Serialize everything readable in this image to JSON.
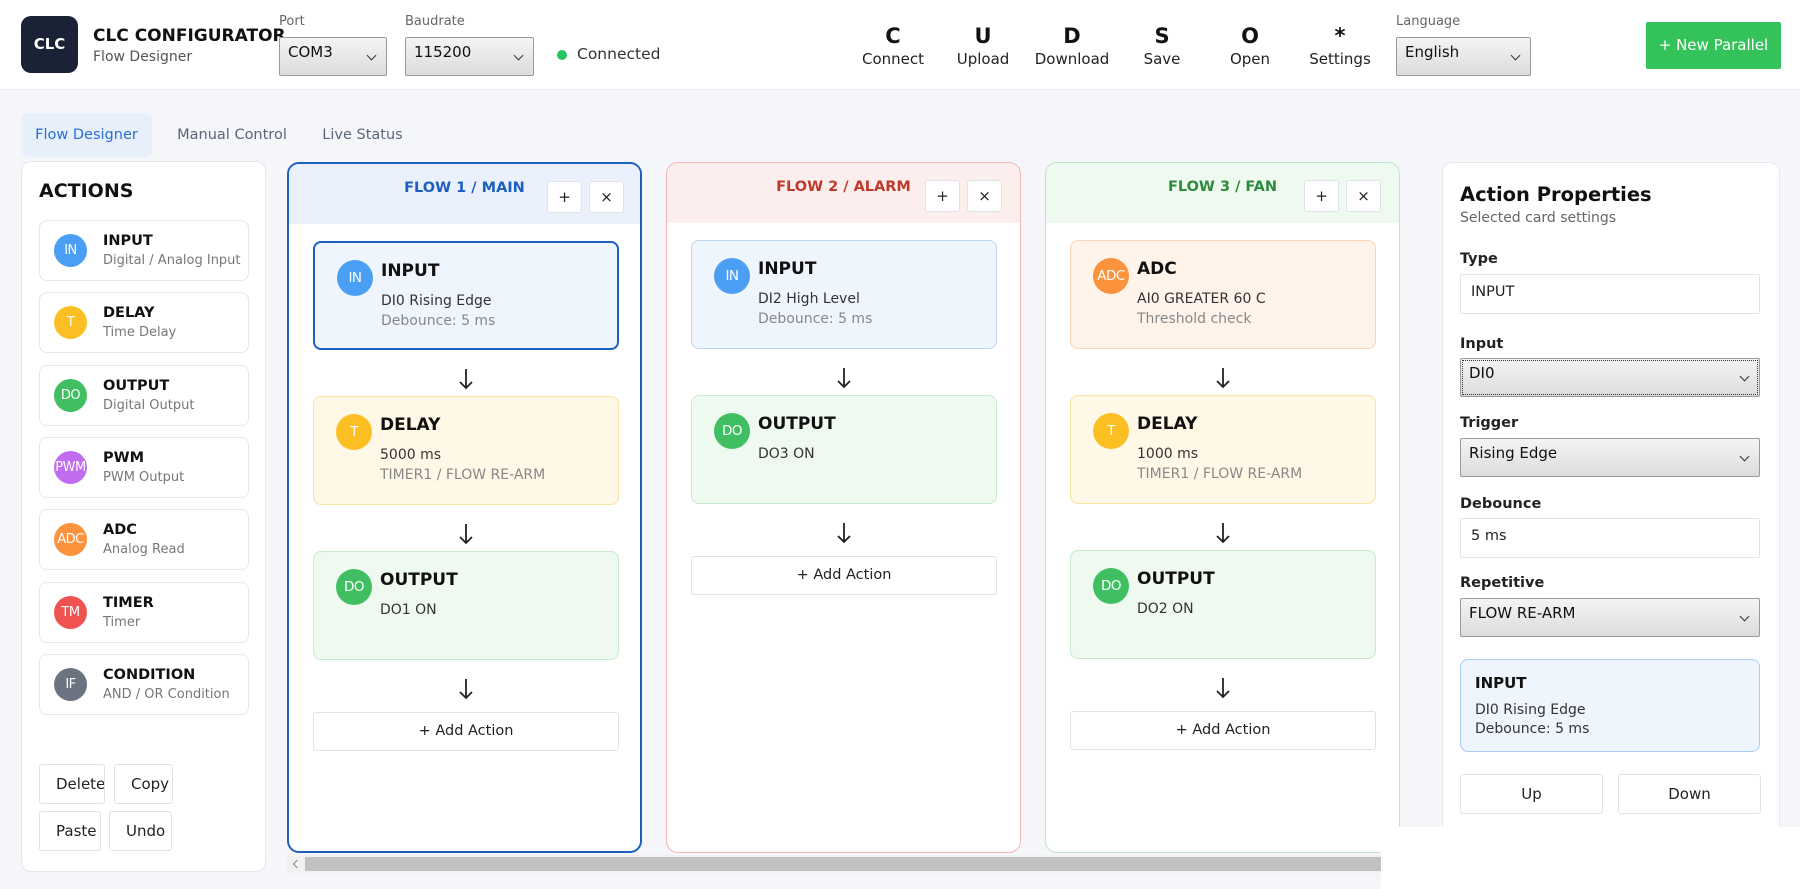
{
  "header": {
    "logo": "CLC",
    "title": "CLC CONFIGURATOR",
    "subtitle": "Flow Designer",
    "port_label": "Port",
    "port": "COM3",
    "baud_label": "Baudrate",
    "baud": "115200",
    "status": "Connected",
    "tools": [
      {
        "icon": "C",
        "label": "Connect"
      },
      {
        "icon": "U",
        "label": "Upload"
      },
      {
        "icon": "D",
        "label": "Download"
      },
      {
        "icon": "S",
        "label": "Save"
      },
      {
        "icon": "O",
        "label": "Open"
      },
      {
        "icon": "*",
        "label": "Settings"
      }
    ],
    "language_label": "Language",
    "language": "English",
    "new_button": "+ New Parallel"
  },
  "tabs": [
    "Flow Designer",
    "Manual Control",
    "Live Status"
  ],
  "actions": {
    "title": "ACTIONS",
    "items": [
      {
        "icon": "IN",
        "name": "INPUT",
        "desc": "Digital / Analog Input"
      },
      {
        "icon": "T",
        "name": "DELAY",
        "desc": "Time Delay"
      },
      {
        "icon": "DO",
        "name": "OUTPUT",
        "desc": "Digital Output"
      },
      {
        "icon": "PWM",
        "name": "PWM",
        "desc": "PWM Output"
      },
      {
        "icon": "ADC",
        "name": "ADC",
        "desc": "Analog Read"
      },
      {
        "icon": "TM",
        "name": "TIMER",
        "desc": "Timer"
      },
      {
        "icon": "IF",
        "name": "CONDITION",
        "desc": "AND / OR Condition"
      }
    ],
    "buttons": [
      "Delete",
      "Copy",
      "Paste",
      "Undo"
    ]
  },
  "flows": [
    {
      "title": "FLOW 1 / MAIN",
      "add": "+",
      "close": "×",
      "add_action": "+ Add Action",
      "cards": [
        {
          "icon": "IN",
          "title": "INPUT",
          "lines": [
            "DI0 Rising Edge",
            "Debounce: 5 ms"
          ]
        },
        {
          "icon": "T",
          "title": "DELAY",
          "lines": [
            "5000 ms",
            "TIMER1 / FLOW RE-ARM"
          ]
        },
        {
          "icon": "DO",
          "title": "OUTPUT",
          "lines": [
            "DO1 ON"
          ]
        }
      ]
    },
    {
      "title": "FLOW 2 / ALARM",
      "add": "+",
      "close": "×",
      "add_action": "+ Add Action",
      "cards": [
        {
          "icon": "IN",
          "title": "INPUT",
          "lines": [
            "DI2 High Level",
            "Debounce: 5 ms"
          ]
        },
        {
          "icon": "DO",
          "title": "OUTPUT",
          "lines": [
            "DO3 ON"
          ]
        }
      ]
    },
    {
      "title": "FLOW 3 / FAN",
      "add": "+",
      "close": "×",
      "add_action": "+ Add Action",
      "cards": [
        {
          "icon": "ADC",
          "title": "ADC",
          "lines": [
            "AI0 GREATER 60 C",
            "Threshold check"
          ]
        },
        {
          "icon": "T",
          "title": "DELAY",
          "lines": [
            "1000 ms",
            "TIMER1 / FLOW RE-ARM"
          ]
        },
        {
          "icon": "DO",
          "title": "OUTPUT",
          "lines": [
            "DO2 ON"
          ]
        }
      ]
    }
  ],
  "properties": {
    "title": "Action Properties",
    "subtitle": "Selected card settings",
    "fields": [
      {
        "label": "Type",
        "value": "INPUT"
      },
      {
        "label": "Input",
        "value": "DI0"
      },
      {
        "label": "Trigger",
        "value": "Rising Edge"
      },
      {
        "label": "Debounce",
        "value": "5 ms"
      },
      {
        "label": "Repetitive",
        "value": "FLOW RE-ARM"
      }
    ],
    "preview": {
      "title": "INPUT",
      "lines": [
        "DI0 Rising Edge",
        "Debounce: 5 ms"
      ]
    },
    "buttons": [
      "Up",
      "Down"
    ]
  }
}
